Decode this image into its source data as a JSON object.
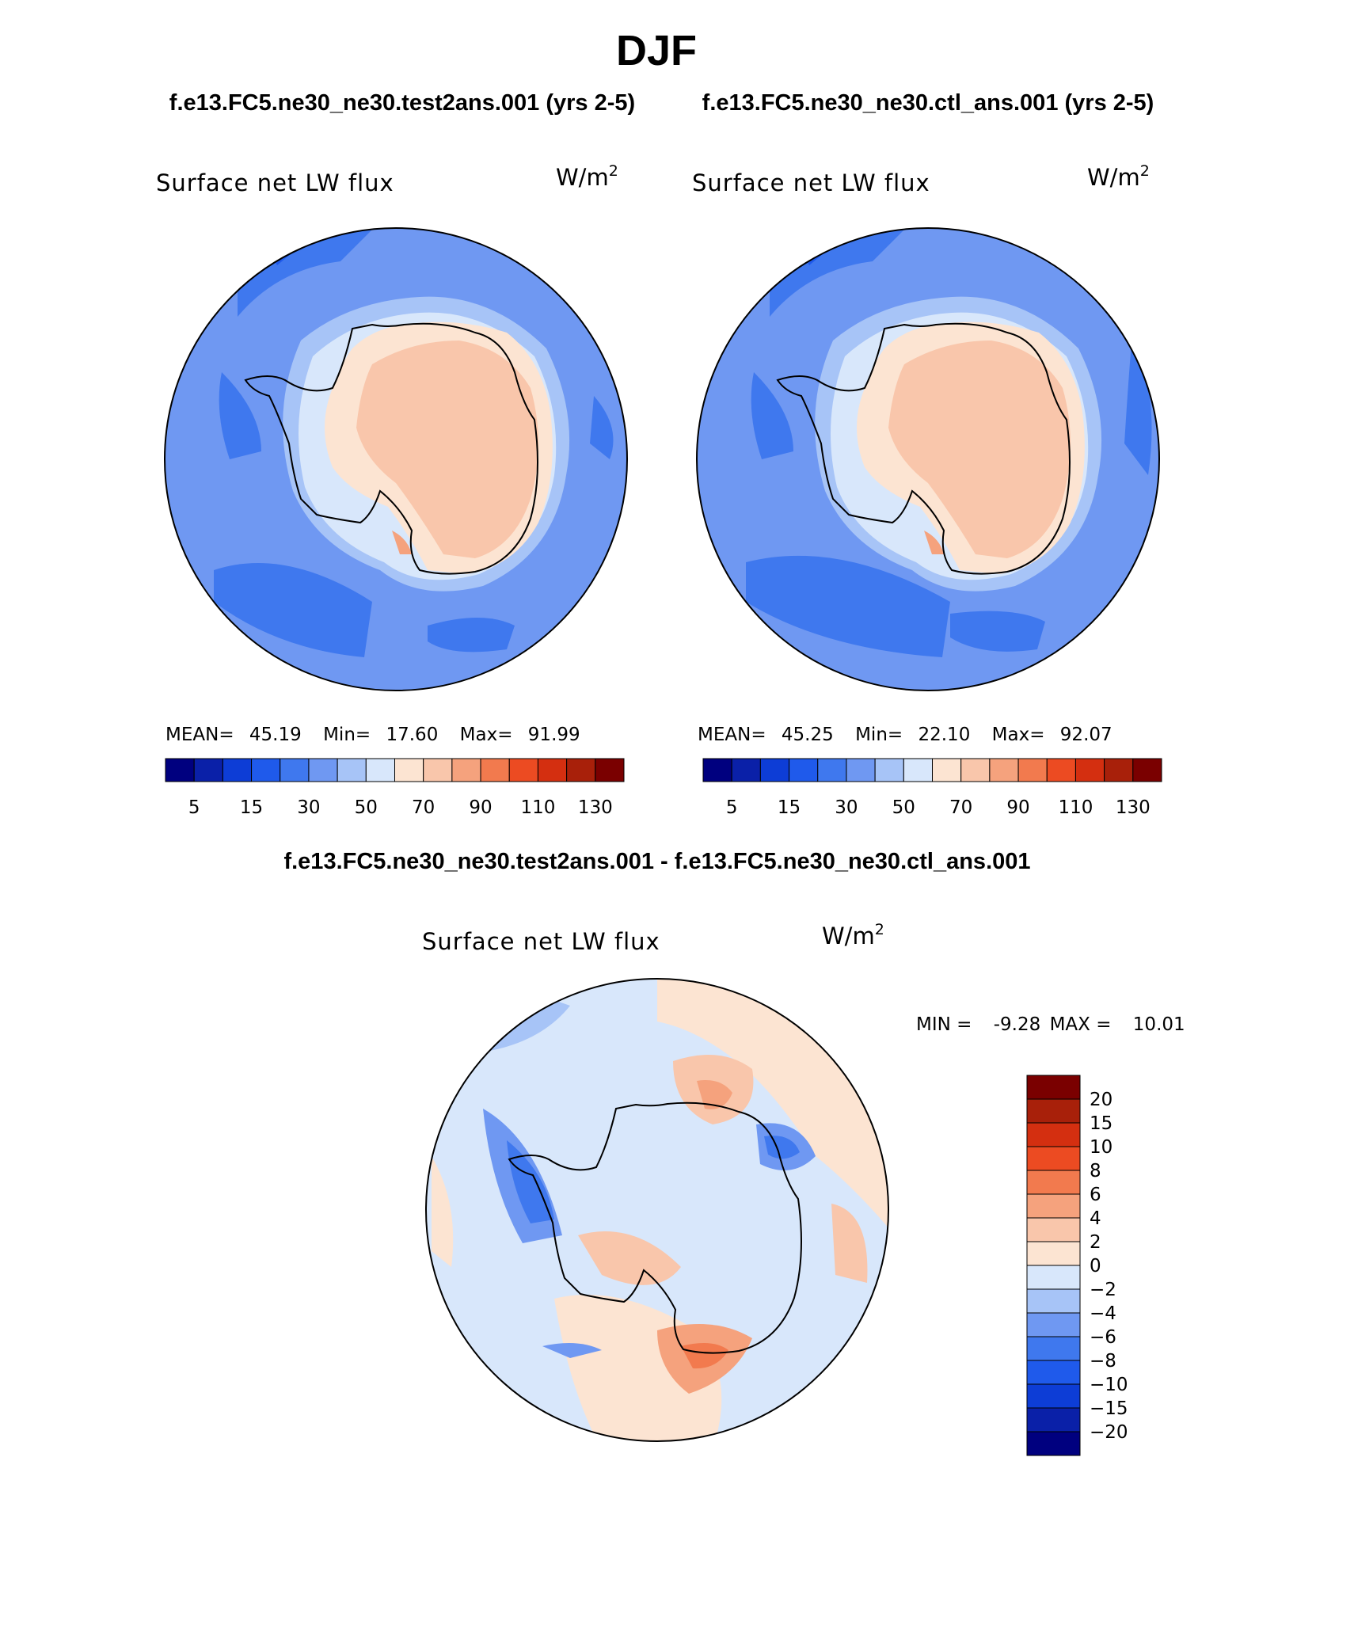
{
  "figure": {
    "title": "DJF",
    "top_caption_left": "f.e13.FC5.ne30_ne30.test2ans.001 (yrs 2-5)",
    "top_caption_right": "f.e13.FC5.ne30_ne30.ctl_ans.001 (yrs 2-5)",
    "diff_caption": "f.e13.FC5.ne30_ne30.test2ans.001 - f.e13.FC5.ne30_ne30.ctl_ans.001"
  },
  "colors": {
    "abs_scale": [
      "#00007f",
      "#0a20a8",
      "#0d3dd6",
      "#1f5aeb",
      "#3f78ee",
      "#6f98f2",
      "#a7c4f7",
      "#d8e7fb",
      "#fce4d2",
      "#f9c6ab",
      "#f5a27d",
      "#f27a4e",
      "#ec4b22",
      "#d42f10",
      "#a8200a",
      "#7a0000"
    ],
    "diff_scale": [
      "#00007f",
      "#0a20a8",
      "#0d3dd6",
      "#1f5aeb",
      "#3f78ee",
      "#6f98f2",
      "#a7c4f7",
      "#d8e7fb",
      "#fce4d2",
      "#f9c6ab",
      "#f5a27d",
      "#f27a4e",
      "#ec4b22",
      "#d42f10",
      "#a8200a",
      "#7a0000"
    ]
  },
  "chart_data": [
    {
      "type": "heatmap",
      "projection": "south-polar-stereographic",
      "title": "Surface net LW flux",
      "units": "W/m",
      "units_exp": "2",
      "stats": {
        "mean_label": "MEAN=",
        "mean": "45.19",
        "min_label": "Min=",
        "min": "17.60",
        "max_label": "Max=",
        "max": "91.99"
      },
      "colorbar_labels": [
        "5",
        "15",
        "30",
        "50",
        "70",
        "90",
        "110",
        "130"
      ],
      "contour_levels": [
        0,
        5,
        10,
        15,
        20,
        30,
        40,
        50,
        60,
        70,
        80,
        90,
        100,
        110,
        120,
        130
      ]
    },
    {
      "type": "heatmap",
      "projection": "south-polar-stereographic",
      "title": "Surface net LW flux",
      "units": "W/m",
      "units_exp": "2",
      "stats": {
        "mean_label": "MEAN=",
        "mean": "45.25",
        "min_label": "Min=",
        "min": "22.10",
        "max_label": "Max=",
        "max": "92.07"
      },
      "colorbar_labels": [
        "5",
        "15",
        "30",
        "50",
        "70",
        "90",
        "110",
        "130"
      ],
      "contour_levels": [
        0,
        5,
        10,
        15,
        20,
        30,
        40,
        50,
        60,
        70,
        80,
        90,
        100,
        110,
        120,
        130
      ]
    },
    {
      "type": "heatmap",
      "projection": "south-polar-stereographic",
      "title": "Surface net LW flux",
      "units": "W/m",
      "units_exp": "2",
      "stats": {
        "min_label": "MIN =",
        "min": "-9.28",
        "max_label": "MAX =",
        "max": "10.01"
      },
      "colorbar_labels": [
        "20",
        "15",
        "10",
        "8",
        "6",
        "4",
        "2",
        "0",
        "−2",
        "−4",
        "−6",
        "−8",
        "−10",
        "−15",
        "−20"
      ]
    }
  ]
}
